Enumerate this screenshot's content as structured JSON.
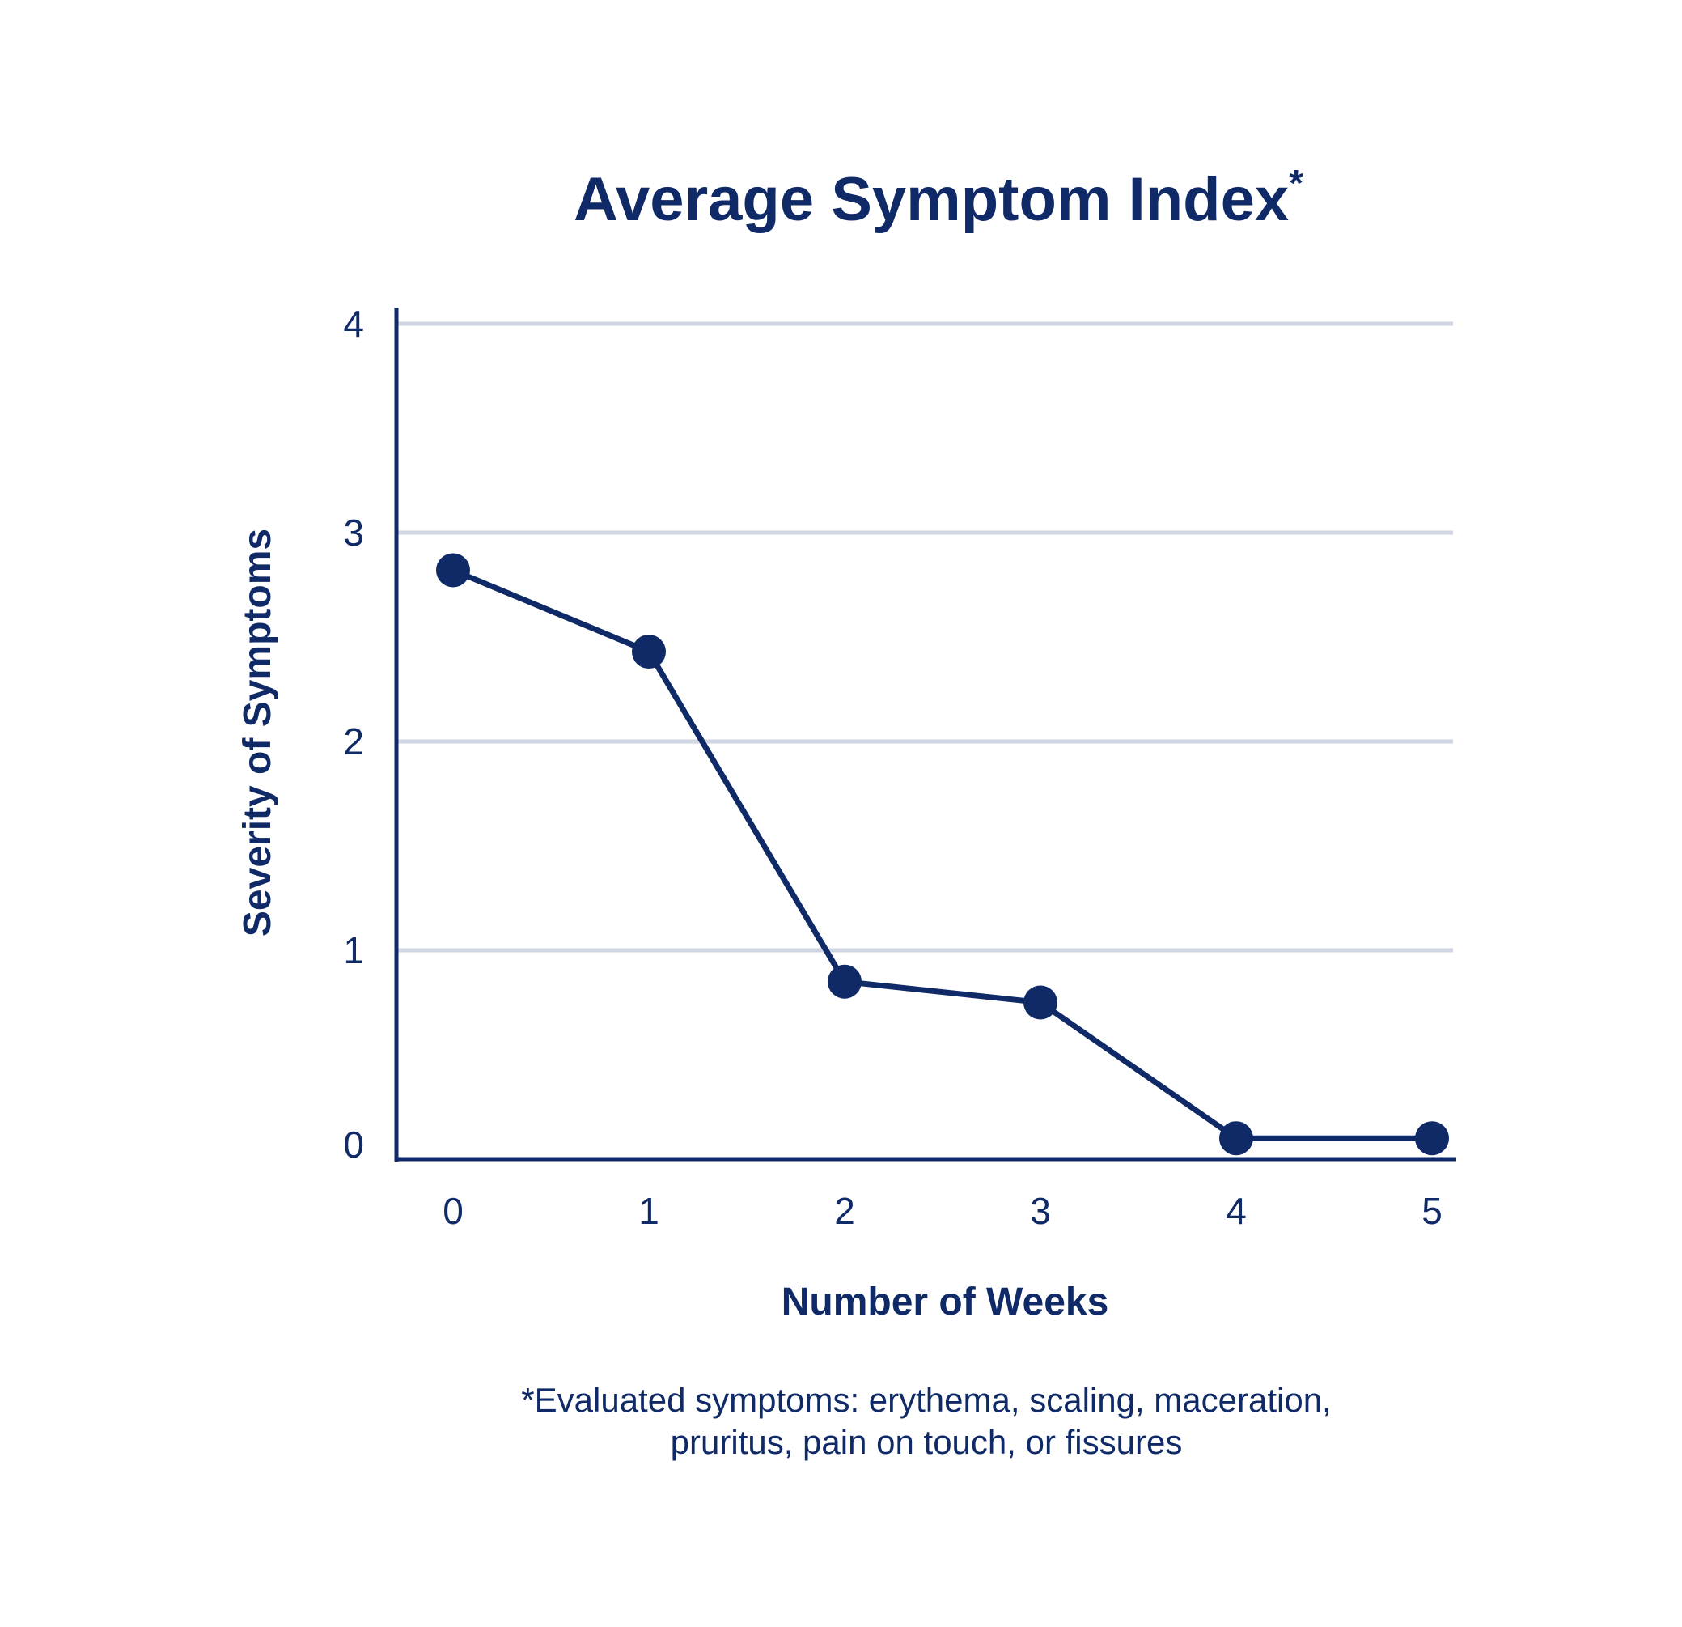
{
  "colors": {
    "primary": "#0f2a66",
    "grid": "#cfd5e3",
    "background": "#ffffff"
  },
  "chart_data": {
    "type": "line",
    "title": "Average Symptom Index",
    "title_marker": "*",
    "xlabel": "Number of Weeks",
    "ylabel": "Severity of Symptoms",
    "x": [
      0,
      1,
      2,
      3,
      4,
      5
    ],
    "x_ticks": [
      "0",
      "1",
      "2",
      "3",
      "4",
      "5"
    ],
    "y_ticks": [
      "0",
      "1",
      "2",
      "3",
      "4"
    ],
    "ylim": [
      0,
      4
    ],
    "grid": true,
    "series": [
      {
        "values": [
          2.82,
          2.43,
          0.85,
          0.75,
          0.1,
          0.1
        ]
      }
    ],
    "footnote": [
      "*Evaluated symptoms: erythema, scaling, maceration,",
      "pruritus, pain on touch, or fissures"
    ]
  }
}
